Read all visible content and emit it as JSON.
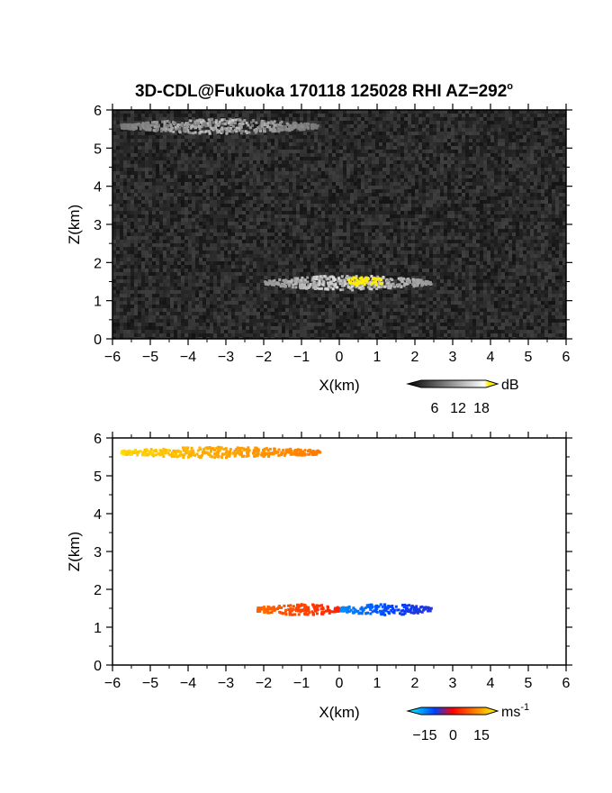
{
  "title": "3D-CDL@Fukuoka 170118 125028 RHI AZ=292",
  "title_degree_symbol": "o",
  "chart_data": [
    {
      "type": "heatmap",
      "variable": "backscatter intensity",
      "xlabel": "X(km)",
      "ylabel": "Z(km)",
      "xlim": [
        -6,
        6
      ],
      "ylim": [
        0,
        6
      ],
      "x_ticks": [
        -6,
        -5,
        -4,
        -3,
        -2,
        -1,
        0,
        1,
        2,
        3,
        4,
        5,
        6
      ],
      "y_ticks": [
        0,
        1,
        2,
        3,
        4,
        5,
        6
      ],
      "colormap": "grayscale with yellow above 18 dB",
      "background_color": "#2a2a2a",
      "features": [
        {
          "layer": "upper cloud layer",
          "x_range": [
            -5.8,
            -0.6
          ],
          "z": 5.6,
          "intensity": "medium-bright"
        },
        {
          "layer": "lower cloud layer",
          "x_range": [
            -2.0,
            2.4
          ],
          "z": 1.5,
          "intensity": "bright"
        },
        {
          "layer": "saturated core",
          "x_range": [
            0.2,
            1.1
          ],
          "z": 1.55,
          "color": "#ffee00"
        }
      ],
      "colorbar": {
        "unit": "dB",
        "ticks": [
          6,
          12,
          18
        ]
      }
    },
    {
      "type": "heatmap",
      "variable": "Doppler velocity",
      "xlabel": "X(km)",
      "ylabel": "Z(km)",
      "xlim": [
        -6,
        6
      ],
      "ylim": [
        0,
        6
      ],
      "x_ticks": [
        -6,
        -5,
        -4,
        -3,
        -2,
        -1,
        0,
        1,
        2,
        3,
        4,
        5,
        6
      ],
      "y_ticks": [
        0,
        1,
        2,
        3,
        4,
        5,
        6
      ],
      "colormap": "cyan-blue-red-orange-yellow",
      "features": [
        {
          "layer": "upper cloud layer",
          "x_range": [
            -5.8,
            -0.5
          ],
          "z": 5.65,
          "velocity_range": [
            8,
            15
          ]
        },
        {
          "layer": "lower layer (negative X)",
          "x_range": [
            -2.2,
            0.1
          ],
          "z": 1.5,
          "velocity_range": [
            2,
            8
          ]
        },
        {
          "layer": "lower layer (positive X)",
          "x_range": [
            0.0,
            2.4
          ],
          "z": 1.5,
          "velocity_range": [
            -12,
            -8
          ]
        }
      ],
      "colorbar": {
        "unit": "ms",
        "unit_exponent": "-1",
        "ticks": [
          -15,
          0,
          15
        ]
      }
    }
  ]
}
